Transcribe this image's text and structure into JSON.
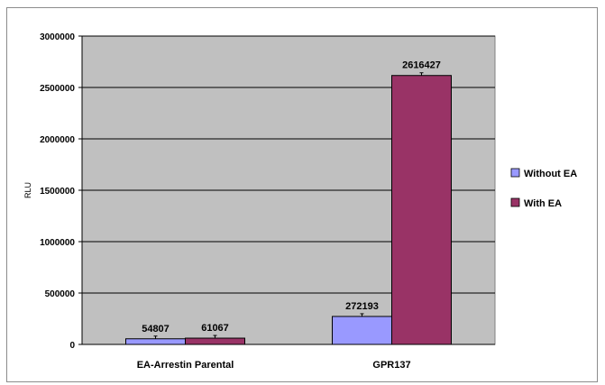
{
  "chart_data": {
    "type": "bar",
    "title": "",
    "xlabel": "",
    "ylabel": "RLU",
    "ylim": [
      0,
      3000000
    ],
    "yticks": [
      0,
      500000,
      1000000,
      1500000,
      2000000,
      2500000,
      3000000
    ],
    "categories": [
      "EA-Arrestin Parental",
      "GPR137"
    ],
    "series": [
      {
        "name": "Without EA",
        "values": [
          54807,
          272193
        ],
        "color": "#9999ff"
      },
      {
        "name": "With EA",
        "values": [
          61067,
          2616427
        ],
        "color": "#993366"
      }
    ],
    "grid": true,
    "plot_background": "#c0c0c0",
    "legend_position": "right",
    "error_bars": true
  }
}
